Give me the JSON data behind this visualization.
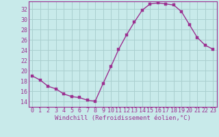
{
  "x": [
    0,
    1,
    2,
    3,
    4,
    5,
    6,
    7,
    8,
    9,
    10,
    11,
    12,
    13,
    14,
    15,
    16,
    17,
    18,
    19,
    20,
    21,
    22,
    23
  ],
  "y": [
    19.0,
    18.2,
    17.0,
    16.5,
    15.5,
    15.0,
    14.8,
    14.3,
    14.1,
    17.5,
    20.8,
    24.2,
    27.0,
    29.5,
    31.8,
    33.0,
    33.2,
    33.0,
    32.8,
    31.5,
    29.0,
    26.5,
    25.0,
    24.2
  ],
  "line_color": "#9b3090",
  "marker_color": "#9b3090",
  "bg_color": "#c8eaea",
  "plot_bg_color": "#c8eaea",
  "grid_color": "#aacfcf",
  "xlabel": "Windchill (Refroidissement éolien,°C)",
  "xlabel_color": "#9b3090",
  "tick_color": "#9b3090",
  "spine_color": "#9b3090",
  "ylim": [
    13.0,
    33.5
  ],
  "xlim": [
    -0.5,
    23.5
  ],
  "yticks": [
    14,
    16,
    18,
    20,
    22,
    24,
    26,
    28,
    30,
    32
  ],
  "xticks": [
    0,
    1,
    2,
    3,
    4,
    5,
    6,
    7,
    8,
    9,
    10,
    11,
    12,
    13,
    14,
    15,
    16,
    17,
    18,
    19,
    20,
    21,
    22,
    23
  ],
  "xtick_labels": [
    "0",
    "1",
    "2",
    "3",
    "4",
    "5",
    "6",
    "7",
    "8",
    "9",
    "10",
    "11",
    "12",
    "13",
    "14",
    "15",
    "16",
    "17",
    "18",
    "19",
    "20",
    "21",
    "22",
    "23"
  ],
  "line_width": 1.0,
  "marker_size": 2.5,
  "tick_fontsize": 6.0,
  "xlabel_fontsize": 6.5
}
